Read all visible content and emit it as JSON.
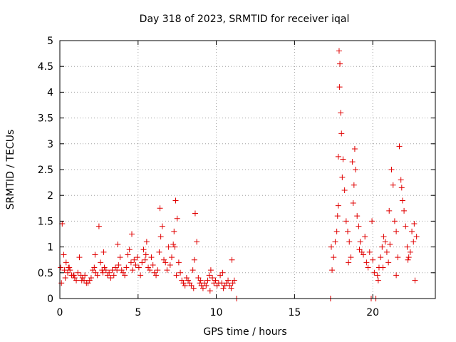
{
  "chart_data": {
    "type": "scatter",
    "title": "Day 318 of 2023, SRMTID for receiver iqal",
    "xlabel": "GPS time / hours",
    "ylabel": "SRMTID / TECUs",
    "xlim": [
      0,
      24
    ],
    "ylim": [
      0,
      5
    ],
    "xticks": [
      0,
      5,
      10,
      15,
      20
    ],
    "xtick_labels": [
      "0",
      "5",
      "10",
      "15",
      "20"
    ],
    "yticks": [
      0,
      0.5,
      1,
      1.5,
      2,
      2.5,
      3,
      3.5,
      4,
      4.5,
      5
    ],
    "ytick_labels": [
      "0",
      "0.5",
      "1",
      "1.5",
      "2",
      "2.5",
      "3",
      "3.5",
      "4",
      "4.5",
      "5"
    ],
    "grid": true,
    "marker": "+",
    "color": "#e00000",
    "series": [
      {
        "name": "SRMTID",
        "x": [
          0.05,
          0.15,
          0.25,
          0.3,
          0.4,
          0.5,
          0.55,
          0.65,
          0.75,
          0.85,
          0.95,
          1.05,
          1.15,
          1.25,
          1.35,
          1.45,
          1.55,
          1.6,
          1.7,
          1.8,
          1.9,
          2.0,
          2.1,
          2.2,
          2.3,
          2.4,
          2.5,
          2.6,
          2.7,
          2.75,
          2.85,
          2.95,
          3.05,
          3.15,
          3.25,
          3.35,
          3.45,
          3.55,
          3.65,
          3.75,
          3.85,
          3.95,
          4.05,
          4.15,
          4.25,
          4.35,
          4.45,
          4.55,
          4.65,
          4.75,
          4.85,
          4.95,
          5.05,
          5.15,
          5.25,
          5.35,
          5.45,
          5.55,
          5.65,
          5.75,
          5.85,
          5.95,
          6.05,
          6.15,
          6.25,
          6.35,
          6.45,
          6.55,
          6.65,
          6.75,
          6.85,
          6.95,
          7.05,
          7.15,
          7.25,
          7.3,
          7.4,
          7.5,
          7.6,
          7.7,
          7.8,
          7.9,
          8.0,
          8.1,
          8.2,
          8.3,
          8.4,
          8.5,
          8.6,
          8.65,
          8.75,
          8.85,
          8.95,
          9.05,
          9.15,
          9.25,
          9.35,
          9.45,
          9.55,
          9.65,
          9.75,
          9.85,
          9.95,
          10.05,
          10.15,
          10.25,
          10.35,
          10.45,
          10.55,
          10.65,
          10.75,
          10.85,
          10.95,
          11.05,
          11.15,
          11.3,
          17.3,
          17.4,
          17.5,
          17.6,
          17.7,
          17.75,
          17.8,
          17.85,
          17.9,
          17.95,
          18.0,
          18.1,
          18.2,
          18.3,
          18.4,
          18.5,
          18.6,
          18.7,
          18.8,
          18.85,
          18.9,
          19.0,
          19.1,
          19.2,
          19.3,
          19.4,
          19.5,
          19.6,
          19.7,
          19.8,
          19.9,
          20.0,
          20.1,
          20.2,
          20.3,
          20.4,
          20.5,
          20.6,
          20.7,
          20.8,
          20.9,
          21.0,
          21.1,
          21.2,
          21.3,
          21.4,
          21.5,
          21.6,
          21.7,
          21.8,
          21.9,
          22.0,
          22.1,
          22.2,
          22.3,
          22.4,
          22.5,
          22.6,
          22.7,
          22.8,
          0.1,
          0.35,
          0.6,
          0.9,
          1.4,
          2.25,
          2.8,
          3.7,
          4.6,
          5.5,
          6.4,
          7.35,
          7.45,
          8.55,
          9.0,
          9.6,
          10.4,
          11.0,
          17.35,
          17.8,
          17.88,
          18.05,
          18.45,
          18.75,
          19.15,
          19.95,
          20.35,
          20.65,
          21.05,
          21.5,
          21.85,
          22.25,
          22.65
        ],
        "y": [
          0.6,
          1.45,
          0.85,
          0.55,
          0.7,
          0.5,
          0.6,
          0.55,
          0.45,
          0.45,
          0.4,
          0.35,
          0.5,
          0.8,
          0.45,
          0.4,
          0.35,
          0.45,
          0.3,
          0.3,
          0.35,
          0.4,
          0.55,
          0.6,
          0.5,
          0.45,
          1.4,
          0.7,
          0.55,
          0.5,
          0.6,
          0.55,
          0.45,
          0.5,
          0.4,
          0.55,
          0.45,
          0.6,
          0.55,
          0.65,
          0.8,
          0.55,
          0.5,
          0.45,
          0.6,
          0.85,
          0.95,
          0.7,
          0.55,
          0.75,
          0.65,
          0.8,
          0.6,
          0.45,
          0.7,
          0.95,
          0.75,
          1.1,
          0.6,
          0.55,
          0.8,
          0.65,
          0.5,
          0.45,
          0.55,
          0.9,
          1.2,
          1.4,
          0.75,
          0.7,
          0.55,
          1.0,
          0.65,
          0.8,
          1.05,
          1.3,
          1.9,
          1.55,
          0.7,
          0.5,
          0.35,
          0.3,
          0.25,
          0.4,
          0.35,
          0.3,
          0.25,
          0.55,
          0.75,
          1.65,
          1.1,
          0.4,
          0.3,
          0.25,
          0.2,
          0.3,
          0.25,
          0.35,
          0.45,
          0.55,
          0.4,
          0.3,
          0.35,
          0.25,
          0.3,
          0.45,
          0.3,
          0.2,
          0.25,
          0.3,
          0.35,
          0.25,
          0.2,
          0.3,
          0.35,
          0.0,
          0.0,
          0.55,
          0.8,
          1.1,
          1.3,
          1.6,
          2.75,
          4.8,
          4.55,
          3.6,
          3.2,
          2.7,
          2.1,
          1.5,
          1.3,
          1.1,
          0.8,
          2.65,
          2.2,
          2.9,
          2.5,
          1.6,
          1.4,
          1.1,
          0.9,
          0.85,
          1.2,
          0.7,
          0.6,
          0.9,
          0.0,
          0.75,
          0.5,
          0.0,
          0.45,
          0.6,
          0.8,
          1.0,
          1.2,
          1.1,
          0.9,
          0.7,
          1.05,
          2.5,
          2.2,
          1.5,
          1.3,
          0.8,
          2.95,
          2.3,
          1.9,
          1.7,
          1.4,
          1.0,
          0.8,
          0.9,
          1.3,
          1.1,
          0.35,
          1.2,
          0.3,
          0.4,
          0.6,
          0.45,
          0.35,
          0.85,
          0.9,
          1.05,
          1.25,
          0.85,
          1.75,
          1.0,
          0.45,
          0.2,
          0.35,
          0.15,
          0.5,
          0.75,
          1.0,
          1.8,
          4.1,
          2.35,
          0.7,
          1.85,
          0.95,
          1.5,
          0.35,
          0.6,
          1.7,
          0.45,
          2.15,
          0.75,
          1.45
        ]
      }
    ]
  }
}
